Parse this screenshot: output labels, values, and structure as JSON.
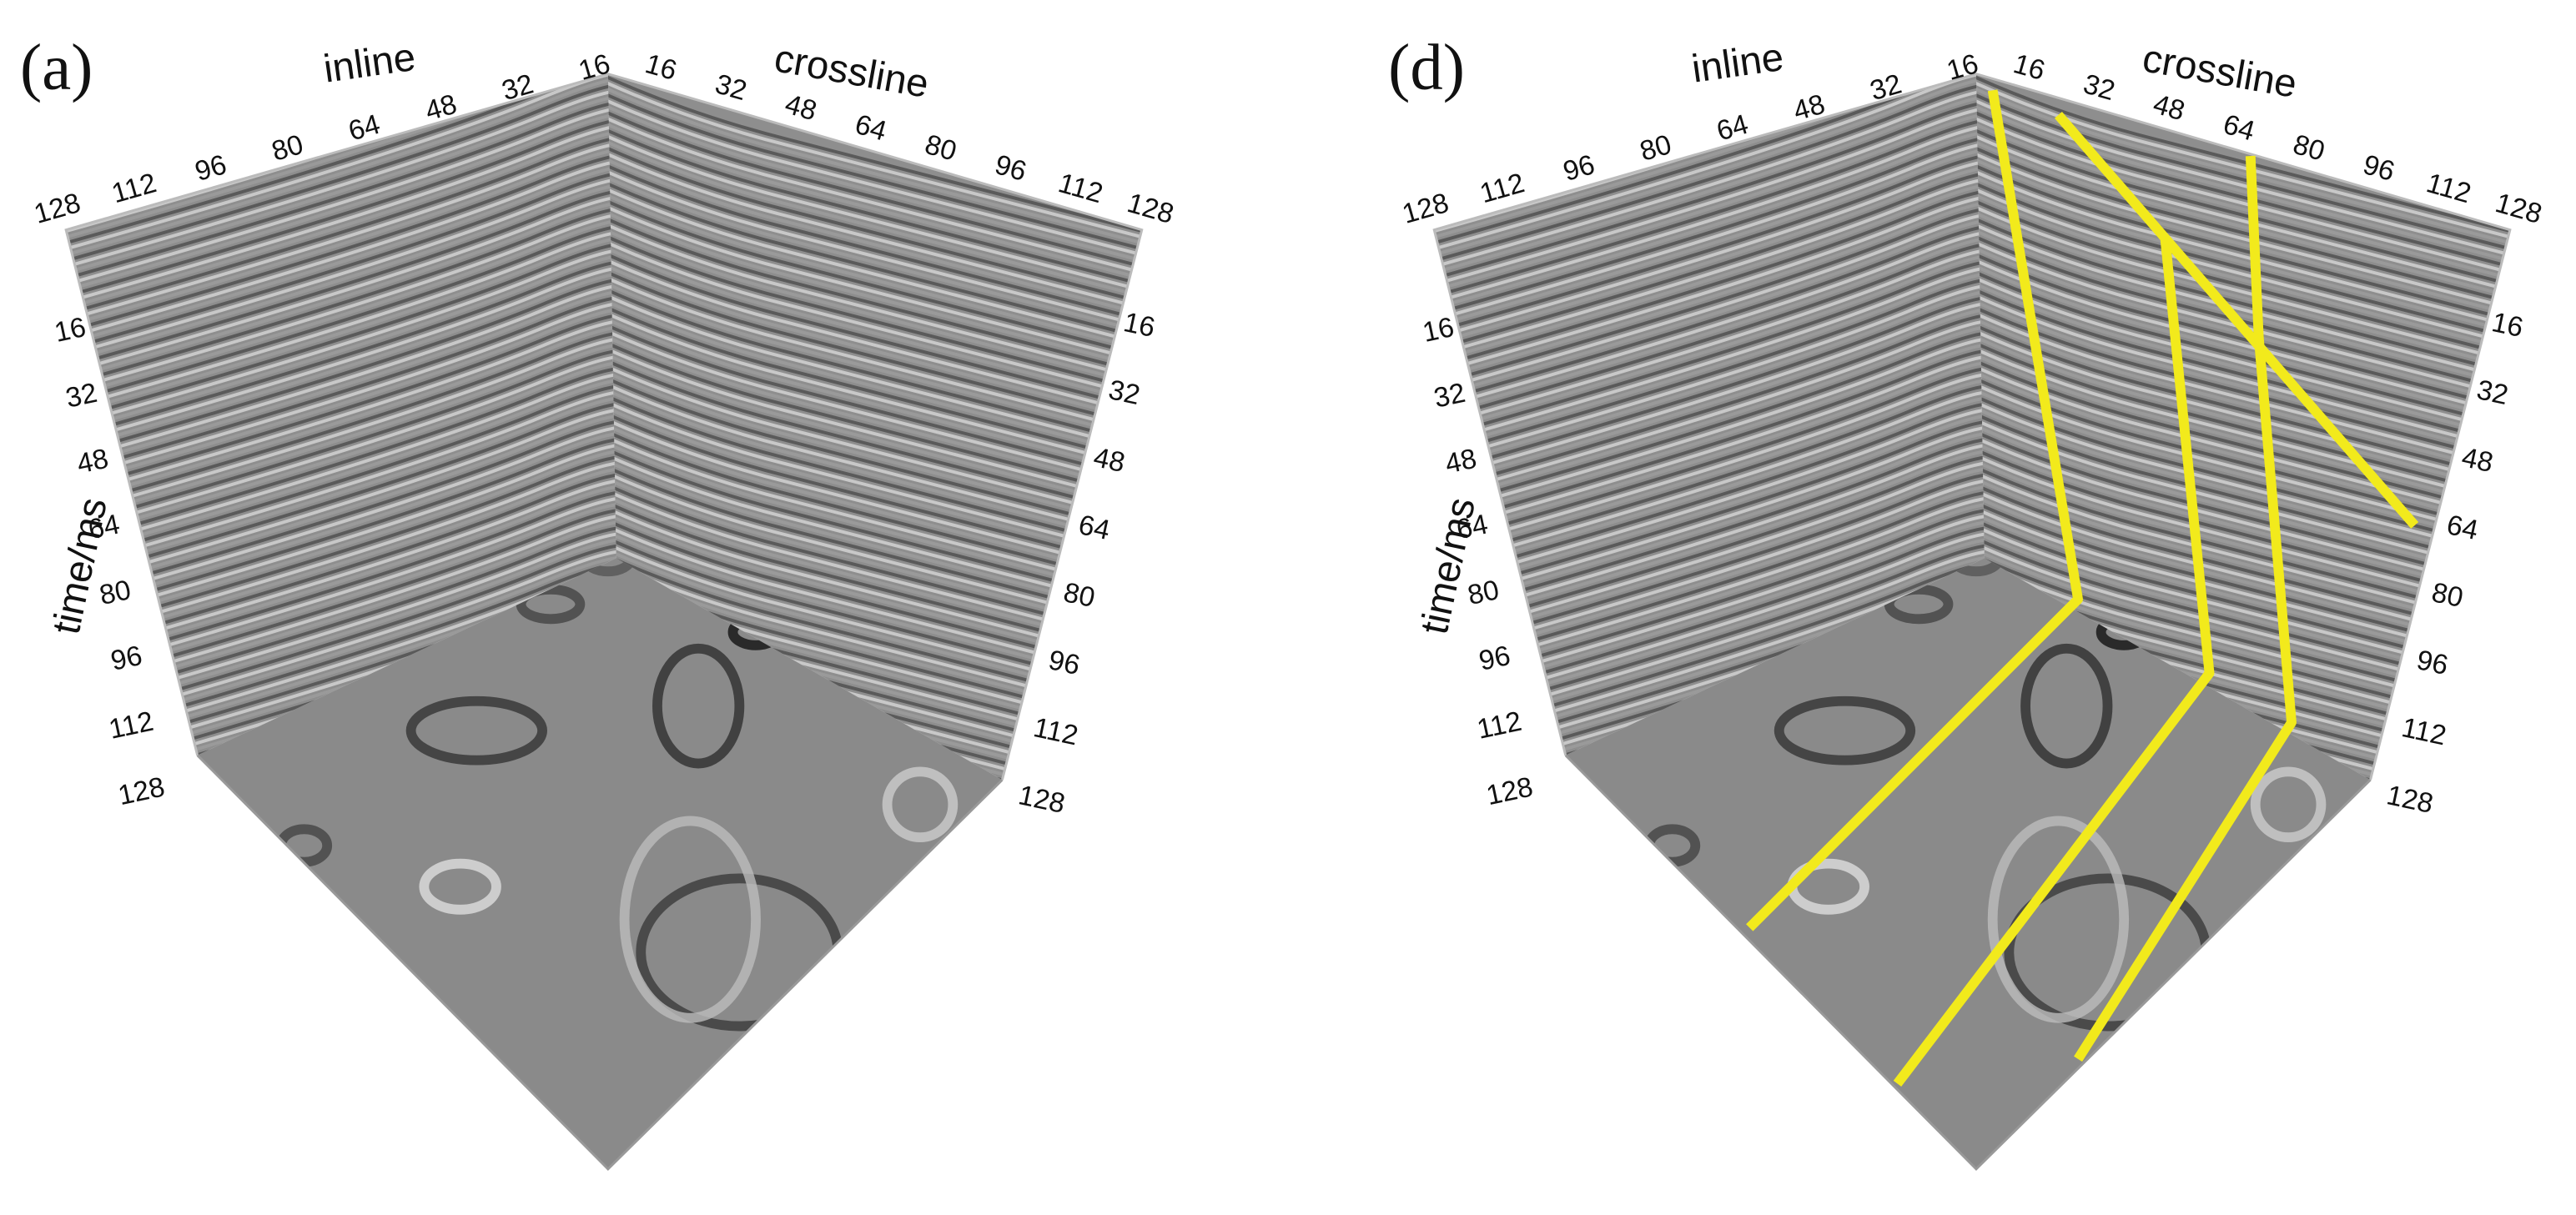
{
  "panels": [
    {
      "label": "(a)",
      "inline_label": "inline",
      "crossline_label": "crossline",
      "time_label": "time/ms",
      "inline_ticks": [
        "128",
        "112",
        "96",
        "80",
        "64",
        "48",
        "32",
        "16"
      ],
      "crossline_ticks": [
        "16",
        "32",
        "48",
        "64",
        "80",
        "96",
        "112",
        "128"
      ],
      "time_ticks_left": [
        "16",
        "32",
        "48",
        "64",
        "80",
        "96",
        "112",
        "128"
      ],
      "time_ticks_right": [
        "16",
        "32",
        "48",
        "64",
        "80",
        "96",
        "112",
        "128"
      ]
    },
    {
      "label": "(d)",
      "inline_label": "inline",
      "crossline_label": "crossline",
      "time_label": "time/ms",
      "inline_ticks": [
        "128",
        "112",
        "96",
        "80",
        "64",
        "48",
        "32",
        "16"
      ],
      "crossline_ticks": [
        "16",
        "32",
        "48",
        "64",
        "80",
        "96",
        "112",
        "128"
      ],
      "time_ticks_left": [
        "16",
        "32",
        "48",
        "64",
        "80",
        "96",
        "112",
        "128"
      ],
      "time_ticks_right": [
        "16",
        "32",
        "48",
        "64",
        "80",
        "96",
        "112",
        "128"
      ]
    }
  ]
}
